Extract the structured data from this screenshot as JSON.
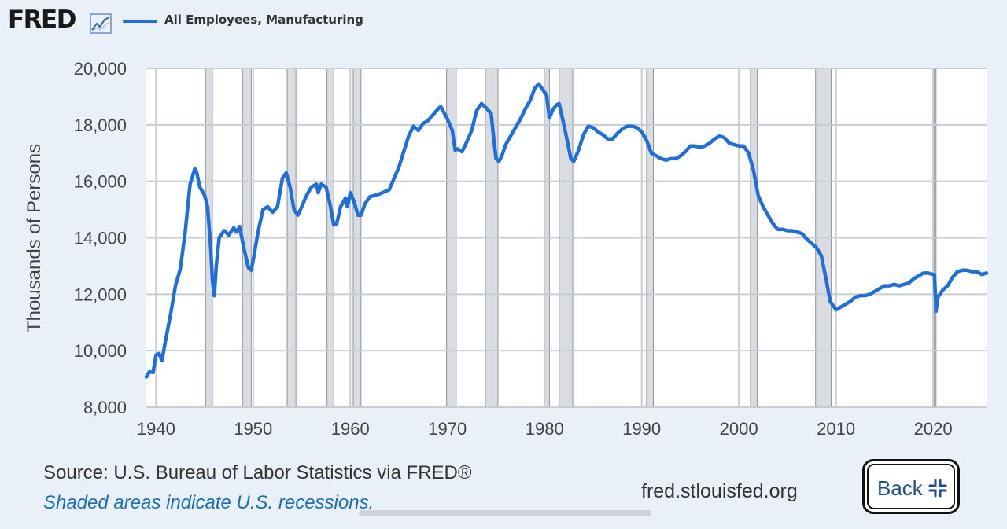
{
  "header": {
    "logo_text": "FRED",
    "logo_icon": "line-chart-icon",
    "legend_label": "All Employees, Manufacturing"
  },
  "colors": {
    "series": "#1f6fd6",
    "recession_shade": "#d9dde2",
    "recession_edge": "#8e9399",
    "grid": "#c8cdd3",
    "plot_bg": "#ffffff",
    "page_bg": "#e9f0f8"
  },
  "chart_data": {
    "type": "line",
    "ylabel": "Thousands of Persons",
    "xlim": [
      1939.0,
      2025.5
    ],
    "ylim": [
      8000,
      20000
    ],
    "x_ticks": [
      1940,
      1950,
      1960,
      1970,
      1980,
      1990,
      2000,
      2010,
      2020
    ],
    "y_ticks": [
      8000,
      10000,
      12000,
      14000,
      16000,
      18000,
      20000
    ],
    "x_tick_labels": [
      "1940",
      "1950",
      "1960",
      "1970",
      "1980",
      "1990",
      "2000",
      "2010",
      "2020"
    ],
    "y_tick_labels": [
      "8,000",
      "10,000",
      "12,000",
      "14,000",
      "16,000",
      "18,000",
      "20,000"
    ],
    "grid": true,
    "recessions": [
      [
        1945.1,
        1945.8
      ],
      [
        1948.9,
        1949.8
      ],
      [
        1953.5,
        1954.4
      ],
      [
        1957.6,
        1958.3
      ],
      [
        1960.3,
        1961.1
      ],
      [
        1969.9,
        1970.9
      ],
      [
        1973.9,
        1975.2
      ],
      [
        1980.0,
        1980.5
      ],
      [
        1981.5,
        1982.9
      ],
      [
        1990.5,
        1991.2
      ],
      [
        2001.2,
        2001.9
      ],
      [
        2007.9,
        2009.5
      ],
      [
        2020.1,
        2020.3
      ]
    ],
    "series": [
      {
        "name": "All Employees, Manufacturing",
        "points": [
          [
            1939.0,
            9070
          ],
          [
            1939.3,
            9250
          ],
          [
            1939.7,
            9230
          ],
          [
            1940.0,
            9850
          ],
          [
            1940.3,
            9900
          ],
          [
            1940.6,
            9650
          ],
          [
            1941.0,
            10400
          ],
          [
            1941.5,
            11300
          ],
          [
            1942.0,
            12300
          ],
          [
            1942.5,
            12900
          ],
          [
            1943.0,
            14200
          ],
          [
            1943.5,
            15900
          ],
          [
            1944.0,
            16450
          ],
          [
            1944.2,
            16300
          ],
          [
            1944.5,
            15800
          ],
          [
            1945.0,
            15500
          ],
          [
            1945.3,
            15100
          ],
          [
            1945.6,
            13800
          ],
          [
            1945.8,
            12500
          ],
          [
            1946.0,
            11950
          ],
          [
            1946.2,
            13000
          ],
          [
            1946.5,
            14000
          ],
          [
            1947.0,
            14250
          ],
          [
            1947.5,
            14100
          ],
          [
            1948.0,
            14350
          ],
          [
            1948.3,
            14200
          ],
          [
            1948.6,
            14400
          ],
          [
            1949.0,
            13700
          ],
          [
            1949.5,
            12950
          ],
          [
            1949.8,
            12850
          ],
          [
            1950.0,
            13200
          ],
          [
            1950.5,
            14200
          ],
          [
            1951.0,
            15000
          ],
          [
            1951.5,
            15100
          ],
          [
            1952.0,
            14900
          ],
          [
            1952.5,
            15100
          ],
          [
            1953.0,
            16100
          ],
          [
            1953.4,
            16300
          ],
          [
            1953.8,
            15800
          ],
          [
            1954.2,
            15000
          ],
          [
            1954.6,
            14800
          ],
          [
            1955.0,
            15100
          ],
          [
            1955.5,
            15500
          ],
          [
            1956.0,
            15800
          ],
          [
            1956.5,
            15900
          ],
          [
            1956.7,
            15600
          ],
          [
            1957.0,
            15900
          ],
          [
            1957.5,
            15800
          ],
          [
            1957.9,
            15200
          ],
          [
            1958.3,
            14450
          ],
          [
            1958.6,
            14500
          ],
          [
            1959.0,
            15100
          ],
          [
            1959.5,
            15400
          ],
          [
            1959.7,
            15100
          ],
          [
            1960.0,
            15600
          ],
          [
            1960.3,
            15350
          ],
          [
            1960.8,
            14800
          ],
          [
            1961.1,
            14800
          ],
          [
            1961.5,
            15200
          ],
          [
            1962.0,
            15450
          ],
          [
            1963.0,
            15550
          ],
          [
            1964.0,
            15700
          ],
          [
            1965.0,
            16500
          ],
          [
            1966.0,
            17600
          ],
          [
            1966.5,
            17950
          ],
          [
            1967.0,
            17800
          ],
          [
            1967.5,
            18050
          ],
          [
            1968.0,
            18150
          ],
          [
            1968.5,
            18350
          ],
          [
            1969.0,
            18550
          ],
          [
            1969.3,
            18650
          ],
          [
            1969.7,
            18400
          ],
          [
            1970.0,
            18200
          ],
          [
            1970.5,
            17800
          ],
          [
            1970.8,
            17100
          ],
          [
            1971.0,
            17150
          ],
          [
            1971.5,
            17050
          ],
          [
            1972.0,
            17400
          ],
          [
            1972.5,
            17800
          ],
          [
            1973.0,
            18500
          ],
          [
            1973.5,
            18750
          ],
          [
            1974.0,
            18600
          ],
          [
            1974.5,
            18400
          ],
          [
            1974.8,
            17400
          ],
          [
            1975.0,
            16800
          ],
          [
            1975.3,
            16700
          ],
          [
            1975.6,
            16900
          ],
          [
            1976.0,
            17300
          ],
          [
            1976.5,
            17600
          ],
          [
            1977.0,
            17900
          ],
          [
            1977.5,
            18200
          ],
          [
            1978.0,
            18550
          ],
          [
            1978.5,
            18850
          ],
          [
            1979.0,
            19300
          ],
          [
            1979.4,
            19450
          ],
          [
            1979.8,
            19250
          ],
          [
            1980.2,
            19050
          ],
          [
            1980.5,
            18250
          ],
          [
            1980.8,
            18500
          ],
          [
            1981.2,
            18700
          ],
          [
            1981.5,
            18750
          ],
          [
            1981.8,
            18300
          ],
          [
            1982.3,
            17500
          ],
          [
            1982.7,
            16800
          ],
          [
            1983.0,
            16700
          ],
          [
            1983.5,
            17100
          ],
          [
            1984.0,
            17650
          ],
          [
            1984.5,
            17950
          ],
          [
            1985.0,
            17900
          ],
          [
            1985.5,
            17750
          ],
          [
            1986.0,
            17650
          ],
          [
            1986.5,
            17500
          ],
          [
            1987.0,
            17500
          ],
          [
            1987.5,
            17700
          ],
          [
            1988.0,
            17850
          ],
          [
            1988.5,
            17950
          ],
          [
            1989.0,
            17950
          ],
          [
            1989.5,
            17900
          ],
          [
            1990.0,
            17750
          ],
          [
            1990.5,
            17450
          ],
          [
            1991.0,
            17000
          ],
          [
            1991.5,
            16900
          ],
          [
            1992.0,
            16800
          ],
          [
            1992.5,
            16750
          ],
          [
            1993.0,
            16800
          ],
          [
            1993.5,
            16800
          ],
          [
            1994.0,
            16900
          ],
          [
            1994.5,
            17050
          ],
          [
            1995.0,
            17250
          ],
          [
            1995.5,
            17250
          ],
          [
            1996.0,
            17200
          ],
          [
            1996.5,
            17250
          ],
          [
            1997.0,
            17350
          ],
          [
            1997.5,
            17500
          ],
          [
            1998.0,
            17600
          ],
          [
            1998.5,
            17550
          ],
          [
            1999.0,
            17350
          ],
          [
            1999.5,
            17300
          ],
          [
            2000.0,
            17250
          ],
          [
            2000.5,
            17250
          ],
          [
            2001.0,
            17000
          ],
          [
            2001.5,
            16400
          ],
          [
            2002.0,
            15500
          ],
          [
            2002.5,
            15100
          ],
          [
            2003.0,
            14800
          ],
          [
            2003.5,
            14500
          ],
          [
            2004.0,
            14300
          ],
          [
            2004.5,
            14300
          ],
          [
            2005.0,
            14250
          ],
          [
            2005.5,
            14250
          ],
          [
            2006.0,
            14200
          ],
          [
            2006.5,
            14150
          ],
          [
            2007.0,
            13950
          ],
          [
            2007.5,
            13800
          ],
          [
            2008.0,
            13650
          ],
          [
            2008.5,
            13350
          ],
          [
            2009.0,
            12500
          ],
          [
            2009.4,
            11750
          ],
          [
            2009.8,
            11550
          ],
          [
            2010.0,
            11450
          ],
          [
            2010.5,
            11550
          ],
          [
            2011.0,
            11650
          ],
          [
            2011.5,
            11750
          ],
          [
            2012.0,
            11900
          ],
          [
            2012.5,
            11950
          ],
          [
            2013.0,
            11950
          ],
          [
            2013.5,
            12000
          ],
          [
            2014.0,
            12100
          ],
          [
            2014.5,
            12200
          ],
          [
            2015.0,
            12300
          ],
          [
            2015.5,
            12300
          ],
          [
            2016.0,
            12350
          ],
          [
            2016.5,
            12300
          ],
          [
            2017.0,
            12350
          ],
          [
            2017.5,
            12400
          ],
          [
            2018.0,
            12550
          ],
          [
            2018.5,
            12650
          ],
          [
            2019.0,
            12750
          ],
          [
            2019.5,
            12750
          ],
          [
            2020.0,
            12700
          ],
          [
            2020.15,
            12700
          ],
          [
            2020.3,
            11400
          ],
          [
            2020.5,
            11900
          ],
          [
            2021.0,
            12150
          ],
          [
            2021.5,
            12300
          ],
          [
            2022.0,
            12600
          ],
          [
            2022.5,
            12800
          ],
          [
            2023.0,
            12850
          ],
          [
            2023.5,
            12850
          ],
          [
            2024.0,
            12800
          ],
          [
            2024.5,
            12800
          ],
          [
            2025.0,
            12700
          ],
          [
            2025.5,
            12750
          ]
        ]
      }
    ]
  },
  "footer": {
    "source": "Source: U.S. Bureau of Labor Statistics via FRED®",
    "recession_note": "Shaded areas indicate U.S. recessions.",
    "site": "fred.stlouisfed.org",
    "back_label": "Back",
    "back_icon": "collapse-icon"
  }
}
